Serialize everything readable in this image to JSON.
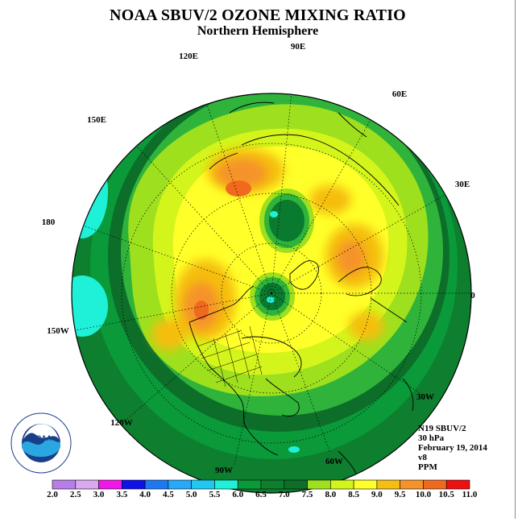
{
  "title": "NOAA SBUV/2 OZONE MIXING RATIO",
  "subtitle": "Northern Hemisphere",
  "logo_text": "NOAA",
  "map": {
    "lon_labels": [
      "90E",
      "60E",
      "30E",
      "0",
      "30W",
      "60W",
      "90W",
      "120W",
      "150W",
      "180",
      "150E",
      "120E"
    ]
  },
  "info": {
    "satellite": "N19 SBUV/2",
    "level": "30 hPa",
    "date": "February 19, 2014",
    "version": "v8",
    "units": "PPM"
  },
  "colorbar": {
    "labels": [
      "2.0",
      "2.5",
      "3.0",
      "3.5",
      "4.0",
      "4.5",
      "5.0",
      "5.5",
      "6.0",
      "6.5",
      "7.0",
      "7.5",
      "8.0",
      "8.5",
      "9.0",
      "9.5",
      "10.0",
      "10.5",
      "11.0"
    ],
    "colors": [
      "#b87ee8",
      "#d8a8f0",
      "#f018e8",
      "#1010e8",
      "#1e78f0",
      "#28a8f8",
      "#20c8f0",
      "#1ff0d8",
      "#0a9a3a",
      "#0e7f2e",
      "#0c6e28",
      "#9ee01e",
      "#d4f51c",
      "#ffff2a",
      "#f5be10",
      "#f5932a",
      "#f06a1e",
      "#ee1010",
      "#8a4a2a"
    ]
  }
}
